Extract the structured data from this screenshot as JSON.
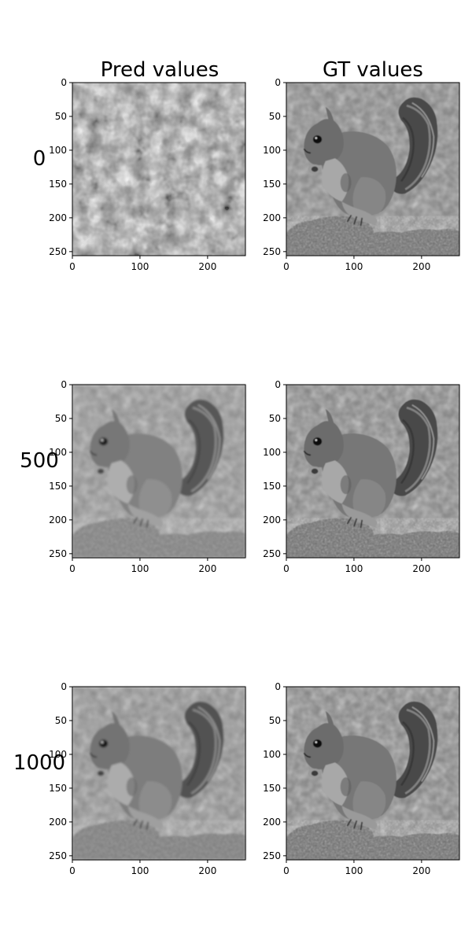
{
  "figure": {
    "column_titles": [
      "Pred values",
      "GT values"
    ],
    "row_labels": [
      "0",
      "500",
      "1000"
    ]
  },
  "chart_data": [
    {
      "type": "heatmap",
      "title": "Pred values",
      "row_label": "0",
      "content": "noisy-blob",
      "xticks": [
        0,
        100,
        200
      ],
      "yticks": [
        0,
        50,
        100,
        150,
        200,
        250
      ],
      "xlim": [
        0,
        256
      ],
      "ylim": [
        256,
        0
      ]
    },
    {
      "type": "heatmap",
      "title": "GT values",
      "row_label": "0",
      "content": "squirrel-sharp",
      "xticks": [
        0,
        100,
        200
      ],
      "yticks": [
        0,
        50,
        100,
        150,
        200,
        250
      ],
      "xlim": [
        0,
        256
      ],
      "ylim": [
        256,
        0
      ]
    },
    {
      "type": "heatmap",
      "title": "Pred values",
      "row_label": "500",
      "content": "squirrel-blurry",
      "xticks": [
        0,
        100,
        200
      ],
      "yticks": [
        0,
        50,
        100,
        150,
        200,
        250
      ],
      "xlim": [
        0,
        256
      ],
      "ylim": [
        256,
        0
      ]
    },
    {
      "type": "heatmap",
      "title": "GT values",
      "row_label": "500",
      "content": "squirrel-sharp",
      "xticks": [
        0,
        100,
        200
      ],
      "yticks": [
        0,
        50,
        100,
        150,
        200,
        250
      ],
      "xlim": [
        0,
        256
      ],
      "ylim": [
        256,
        0
      ]
    },
    {
      "type": "heatmap",
      "title": "Pred values",
      "row_label": "1000",
      "content": "squirrel-blurry",
      "xticks": [
        0,
        100,
        200
      ],
      "yticks": [
        0,
        50,
        100,
        150,
        200,
        250
      ],
      "xlim": [
        0,
        256
      ],
      "ylim": [
        256,
        0
      ]
    },
    {
      "type": "heatmap",
      "title": "GT values",
      "row_label": "1000",
      "content": "squirrel-sharp",
      "xticks": [
        0,
        100,
        200
      ],
      "yticks": [
        0,
        50,
        100,
        150,
        200,
        250
      ],
      "xlim": [
        0,
        256
      ],
      "ylim": [
        256,
        0
      ]
    }
  ]
}
